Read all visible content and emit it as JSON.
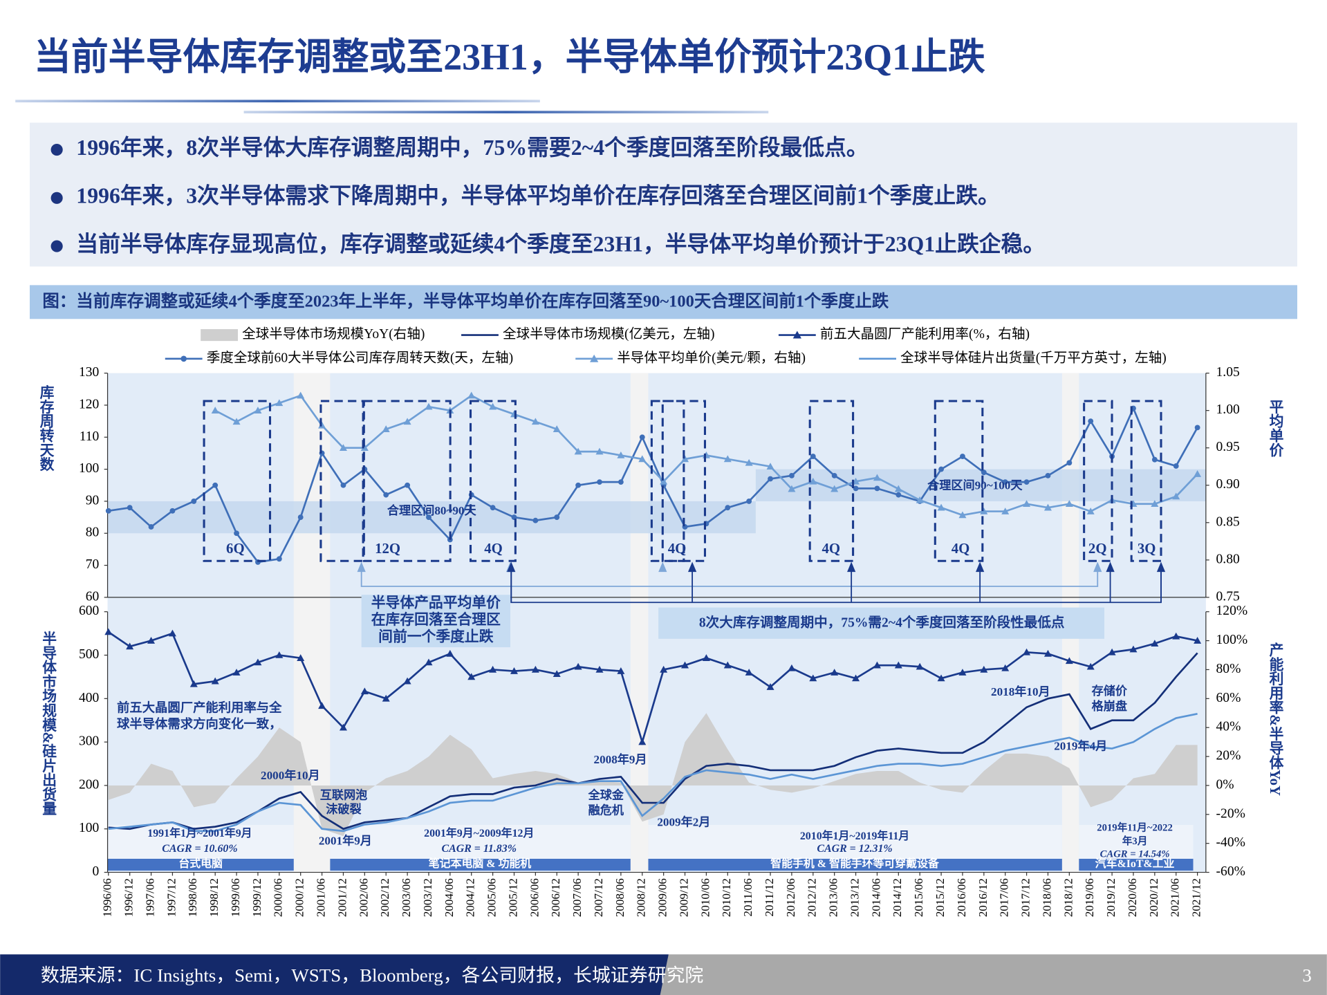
{
  "title": "当前半导体库存调整或至23H1，半导体单价预计23Q1止跌",
  "bullets": [
    "1996年来，8次半导体大库存调整周期中，75%需要2~4个季度回落至阶段最低点。",
    "1996年来，3次半导体需求下降周期中，半导体平均单价在库存回落至合理区间前1个季度止跌。",
    "当前半导体库存显现高位，库存调整或延续4个季度至23H1，半导体平均单价预计于23Q1止跌企稳。"
  ],
  "figure_title": "图：当前库存调整或延续4个季度至2023年上半年，半导体平均单价在库存回落至90~100天合理区间前1个季度止跌",
  "chart_data": [
    {
      "type": "line",
      "ylabel": "库存周转天数",
      "y2label": "平均单价",
      "ylim": [
        60,
        130
      ],
      "yticks": [
        60,
        70,
        80,
        90,
        100,
        110,
        120,
        130
      ],
      "y2lim": [
        0.75,
        1.05
      ],
      "y2ticks": [
        0.75,
        {
          "value": 0.8,
          "label": "0.80"
        },
        0.85,
        {
          "value": 0.9,
          "label": "0.90"
        },
        0.95,
        {
          "value": 1,
          "label": "1.00"
        },
        1.05
      ],
      "series": [
        {
          "name": "季度全球前60大半导体公司库存周转天数(天，左轴)",
          "color": "#3f6fb8",
          "marker": "circle",
          "values": [
            87,
            88,
            82,
            87,
            90,
            95,
            80,
            71,
            72,
            85,
            105,
            95,
            100,
            92,
            95,
            85,
            78,
            92,
            88,
            85,
            84,
            85,
            95,
            96,
            96,
            110,
            95,
            82,
            83,
            88,
            90,
            97,
            98,
            104,
            98,
            94,
            94,
            92,
            90,
            100,
            104,
            99,
            96,
            96,
            98,
            102,
            115,
            104,
            119,
            103,
            101,
            113
          ]
        },
        {
          "name": "半导体平均单价(美元/颗，右轴)",
          "color": "#6f9fd6",
          "marker": "triangle",
          "axis": "y2",
          "values": [
            null,
            null,
            null,
            null,
            null,
            1,
            0.985,
            1,
            1.01,
            1.02,
            0.98,
            0.95,
            0.95,
            0.975,
            0.985,
            1.005,
            1,
            1.02,
            1.005,
            0.995,
            0.985,
            0.975,
            0.945,
            0.945,
            0.94,
            0.935,
            0.905,
            0.935,
            0.94,
            0.935,
            0.93,
            0.925,
            0.895,
            0.905,
            0.895,
            0.905,
            0.91,
            0.895,
            0.88,
            0.87,
            0.86,
            0.865,
            0.865,
            0.875,
            0.87,
            0.875,
            0.865,
            0.88,
            0.875,
            0.875,
            0.885,
            0.915
          ]
        }
      ]
    },
    {
      "type": "line",
      "ylabel": "半导体市场规模&硅片出货量",
      "y2label": "产能利用率&半导体YoY",
      "categories": [
        "1996/06",
        "1996/12",
        "1997/06",
        "1997/12",
        "1998/06",
        "1998/12",
        "1999/06",
        "1999/12",
        "2000/06",
        "2000/12",
        "2001/06",
        "2001/12",
        "2002/06",
        "2002/12",
        "2003/06",
        "2003/12",
        "2004/06",
        "2004/12",
        "2005/06",
        "2005/12",
        "2006/06",
        "2006/12",
        "2007/06",
        "2007/12",
        "2008/06",
        "2008/12",
        "2009/06",
        "2009/12",
        "2010/06",
        "2010/12",
        "2011/06",
        "2011/12",
        "2012/06",
        "2012/12",
        "2013/06",
        "2013/12",
        "2014/06",
        "2014/12",
        "2015/06",
        "2015/12",
        "2016/06",
        "2016/12",
        "2017/06",
        "2017/12",
        "2018/06",
        "2018/12",
        "2019/06",
        "2019/12",
        "2020/06",
        "2020/12",
        "2021/06",
        "2021/12"
      ],
      "ylim": [
        0,
        600
      ],
      "yticks": [
        0,
        100,
        200,
        300,
        400,
        500,
        600
      ],
      "y2lim": [
        -60,
        120
      ],
      "y2ticks": [
        {
          "value": -60,
          "label": "-60%"
        },
        {
          "value": -40,
          "label": "-40%"
        },
        {
          "value": -20,
          "label": "-20%"
        },
        {
          "value": 0,
          "label": "0%"
        },
        {
          "value": 20,
          "label": "20%"
        },
        {
          "value": 40,
          "label": "40%"
        },
        {
          "value": 60,
          "label": "60%"
        },
        {
          "value": 80,
          "label": "80%"
        },
        {
          "value": 100,
          "label": "100%"
        },
        {
          "value": 120,
          "label": "120%"
        }
      ],
      "series": [
        {
          "name": "全球半导体市场规模YoY(右轴)",
          "color": "#cfcfcf",
          "kind": "area",
          "axis": "y2",
          "values": [
            -10,
            -5,
            15,
            10,
            -15,
            -12,
            5,
            20,
            40,
            30,
            -30,
            -35,
            -5,
            5,
            10,
            20,
            35,
            25,
            5,
            8,
            10,
            8,
            2,
            3,
            2,
            -25,
            -20,
            30,
            50,
            25,
            2,
            -3,
            -5,
            -2,
            3,
            8,
            10,
            10,
            2,
            -3,
            -5,
            10,
            22,
            22,
            20,
            12,
            -15,
            -10,
            5,
            8,
            28,
            28
          ]
        },
        {
          "name": "全球半导体市场规模(亿美元，左轴)",
          "color": "#142f78",
          "values": [
            103,
            100,
            110,
            115,
            100,
            105,
            115,
            140,
            170,
            185,
            130,
            100,
            115,
            120,
            125,
            150,
            175,
            180,
            180,
            195,
            200,
            215,
            205,
            215,
            220,
            160,
            160,
            215,
            245,
            250,
            245,
            235,
            235,
            235,
            245,
            265,
            280,
            285,
            280,
            275,
            275,
            300,
            340,
            380,
            400,
            410,
            330,
            350,
            350,
            390,
            450,
            505
          ]
        },
        {
          "name": "前五大晶圆厂产能利用率(%，右轴)",
          "color": "#1a3a8c",
          "marker": "triangle",
          "axis": "y2",
          "values": [
            106,
            96,
            100,
            105,
            70,
            72,
            78,
            85,
            90,
            88,
            55,
            40,
            65,
            60,
            72,
            85,
            91,
            75,
            80,
            79,
            80,
            77,
            82,
            80,
            79,
            30,
            80,
            83,
            88,
            83,
            78,
            68,
            81,
            74,
            78,
            74,
            83,
            83,
            82,
            74,
            78,
            80,
            81,
            92,
            91,
            86,
            82,
            92,
            94,
            98,
            103,
            100
          ]
        },
        {
          "name": "全球半导体硅片出货量(千万平方英寸，左轴)",
          "color": "#5b95d5",
          "values": [
            100,
            105,
            110,
            115,
            95,
            95,
            110,
            140,
            160,
            155,
            100,
            95,
            110,
            115,
            125,
            140,
            160,
            165,
            165,
            180,
            195,
            205,
            205,
            210,
            210,
            130,
            170,
            220,
            235,
            230,
            225,
            215,
            225,
            215,
            225,
            235,
            245,
            250,
            250,
            245,
            250,
            265,
            280,
            290,
            300,
            310,
            290,
            285,
            300,
            330,
            355,
            365
          ]
        }
      ]
    }
  ],
  "annotations": [
    "6Q",
    "12Q",
    "4Q",
    "4Q",
    "4Q",
    "4Q",
    "2Q",
    "3Q",
    "合理区间80~90天",
    "合理区间90~100天",
    "半导体产品平均单价",
    "在库存回落至合理区",
    "间前一个季度止跌",
    "8次大库存调整周期中，75%需2~4个季度回落至阶段性最低点",
    "前五大晶圆厂产能利用率与全",
    "球半导体需求方向变化一致，",
    "2000年10月",
    "互联网泡",
    "沫破裂",
    "2001年9月",
    "2008年9月",
    "全球金",
    "融危机",
    "2009年2月",
    "2018年10月",
    "存储价",
    "格崩盘",
    "2019年4月",
    "1991年1月~2001年9月",
    "CAGR = 10.60%",
    "2001年9月~2009年12月",
    "CAGR = 11.83%",
    "2010年1月~2019年11月",
    "CAGR = 12.31%",
    "2019年11月~2022",
    "年3月",
    "CAGR = 14.54%",
    "台式电脑",
    "笔记本电脑 & 功能机",
    "智能手机 & 智能手环等可穿戴设备",
    "汽车&IoT&工业"
  ],
  "source": "数据来源：IC Insights，Semi，WSTS，Bloomberg，各公司财报，长城证券研究院",
  "page": "3"
}
